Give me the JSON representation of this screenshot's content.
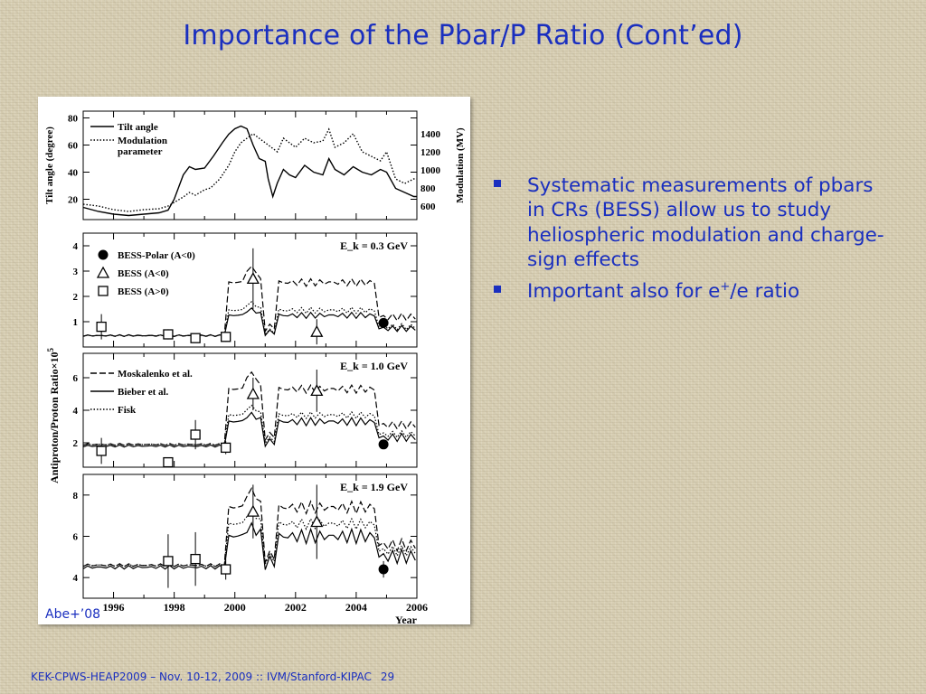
{
  "slide": {
    "title": "Importance of the Pbar/P Ratio (Cont’ed)",
    "credit": "Abe+’08",
    "bullets": [
      {
        "pre": "Systematic measurements of pbars in CRs (BESS) allow us to study heliospheric modulation and charge-sign effects",
        "sup": "",
        "post": ""
      },
      {
        "pre": "Important also for e",
        "sup": "+",
        "post": "/e ratio"
      }
    ],
    "footer": "KEK-CPWS-HEAP2009 – Nov. 10-12, 2009 :: IVM/Stanford-KIPAC",
    "page_number": "29"
  },
  "chart_data": [
    {
      "type": "line",
      "x_ticks": [
        "1996",
        "1998",
        "2000",
        "2002",
        "2004",
        "2006"
      ],
      "xlim": [
        1995.0,
        2006.0
      ],
      "ylabel": "Tilt angle (degree)",
      "y_ticks": [
        "20",
        "40",
        "60",
        "80"
      ],
      "ylim": [
        5,
        85
      ],
      "y2label": "Modulation (MV)",
      "y2_ticks": [
        "600",
        "800",
        "1000",
        "1200",
        "1400"
      ],
      "y2lim": [
        450,
        1650
      ],
      "legend_position": "top-left",
      "series": [
        {
          "name": "Tilt angle",
          "style": "solid",
          "axis": "left",
          "x": [
            1995.0,
            1995.5,
            1996.0,
            1996.5,
            1997.0,
            1997.5,
            1997.8,
            1998.0,
            1998.3,
            1998.5,
            1998.7,
            1999.0,
            1999.3,
            1999.6,
            1999.8,
            2000.0,
            2000.2,
            2000.4,
            2000.6,
            2000.8,
            2001.0,
            2001.1,
            2001.25,
            2001.4,
            2001.6,
            2001.8,
            2002.0,
            2002.3,
            2002.6,
            2002.9,
            2003.1,
            2003.3,
            2003.6,
            2003.9,
            2004.2,
            2004.5,
            2004.8,
            2005.0,
            2005.3,
            2005.6,
            2005.9,
            2006.0
          ],
          "y": [
            14,
            11,
            9,
            8,
            9,
            10,
            12,
            20,
            38,
            44,
            42,
            43,
            52,
            62,
            68,
            72,
            74,
            72,
            60,
            50,
            48,
            35,
            22,
            32,
            42,
            38,
            36,
            45,
            40,
            38,
            50,
            42,
            38,
            44,
            40,
            38,
            42,
            40,
            28,
            25,
            22,
            22
          ]
        },
        {
          "name": "Modulation parameter",
          "style": "dotted",
          "axis": "right",
          "x": [
            1995.0,
            1995.5,
            1996.0,
            1996.5,
            1997.0,
            1997.5,
            1997.8,
            1998.0,
            1998.3,
            1998.5,
            1998.7,
            1999.0,
            1999.2,
            1999.5,
            1999.8,
            2000.0,
            2000.2,
            2000.4,
            2000.6,
            2000.8,
            2001.0,
            2001.2,
            2001.4,
            2001.6,
            2001.8,
            2002.0,
            2002.3,
            2002.6,
            2002.9,
            2003.1,
            2003.3,
            2003.6,
            2003.9,
            2004.2,
            2004.5,
            2004.8,
            2005.0,
            2005.3,
            2005.6,
            2005.9,
            2006.0
          ],
          "y": [
            620,
            600,
            560,
            540,
            560,
            570,
            600,
            640,
            700,
            750,
            720,
            780,
            800,
            900,
            1050,
            1200,
            1300,
            1350,
            1400,
            1350,
            1300,
            1250,
            1200,
            1350,
            1300,
            1250,
            1350,
            1300,
            1320,
            1450,
            1250,
            1300,
            1400,
            1200,
            1150,
            1100,
            1200,
            900,
            850,
            900,
            900
          ]
        }
      ]
    },
    {
      "type": "scatter",
      "annotation": "E_k = 0.3 GeV",
      "y_ticks": [
        "1",
        "2",
        "3",
        "4"
      ],
      "ylim": [
        0,
        4.5
      ],
      "xlim": [
        1995.0,
        2006.0
      ],
      "legend_position": "top-left",
      "series": [
        {
          "name": "BESS-Polar (A<0)",
          "marker": "filled-circle",
          "x": [
            2004.9
          ],
          "y": [
            0.95
          ],
          "err": [
            0.1
          ]
        },
        {
          "name": "BESS (A<0)",
          "marker": "open-triangle",
          "x": [
            2000.6,
            2002.7
          ],
          "y": [
            2.7,
            0.6
          ],
          "err": [
            1.2,
            0.5
          ]
        },
        {
          "name": "BESS (A>0)",
          "marker": "open-square",
          "x": [
            1995.6,
            1997.8,
            1998.7,
            1999.7
          ],
          "y": [
            0.8,
            0.5,
            0.35,
            0.4
          ],
          "err": [
            0.5,
            0.2,
            0.15,
            0.2
          ]
        }
      ]
    },
    {
      "type": "scatter",
      "annotation": "E_k = 1.0 GeV",
      "y_ticks": [
        "2",
        "4",
        "6"
      ],
      "ylim": [
        0.5,
        7.5
      ],
      "xlim": [
        1995.0,
        2006.0
      ],
      "legend_position": "top-left",
      "series": [
        {
          "name": "Moskalenko et al.",
          "style": "dashed"
        },
        {
          "name": "Bieber et al.",
          "style": "solid"
        },
        {
          "name": "Fisk",
          "style": "dotted"
        },
        {
          "marker": "open-square",
          "x": [
            1995.6,
            1997.8,
            1998.7,
            1999.7
          ],
          "y": [
            1.5,
            0.8,
            2.5,
            1.7
          ],
          "err": [
            0.8,
            0.3,
            0.9,
            0.4
          ]
        },
        {
          "marker": "open-triangle",
          "x": [
            2000.6,
            2002.7
          ],
          "y": [
            5.0,
            5.2
          ],
          "err": [
            1.0,
            1.3
          ]
        },
        {
          "marker": "filled-circle",
          "x": [
            2004.9
          ],
          "y": [
            1.9
          ],
          "err": [
            0.2
          ]
        }
      ]
    },
    {
      "type": "scatter",
      "annotation": "E_k = 1.9 GeV",
      "xlabel": "Year",
      "x_ticks": [
        "1996",
        "1998",
        "2000",
        "2002",
        "2004",
        "2006"
      ],
      "y_ticks": [
        "4",
        "6",
        "8"
      ],
      "ylim": [
        3.0,
        9.0
      ],
      "xlim": [
        1995.0,
        2006.0
      ],
      "series": [
        {
          "marker": "open-square",
          "x": [
            1997.8,
            1998.7,
            1999.7
          ],
          "y": [
            4.8,
            4.9,
            4.4
          ],
          "err": [
            1.3,
            1.3,
            0.5
          ]
        },
        {
          "marker": "open-triangle",
          "x": [
            2000.6,
            2002.7
          ],
          "y": [
            7.2,
            6.7
          ],
          "err": [
            1.3,
            1.8
          ]
        },
        {
          "marker": "filled-circle",
          "x": [
            2004.9
          ],
          "y": [
            4.4
          ],
          "err": [
            0.4
          ]
        }
      ]
    }
  ],
  "shared": {
    "ylabel": "Antiproton/Proton Ratio×10",
    "ylabel_sup": "5"
  }
}
